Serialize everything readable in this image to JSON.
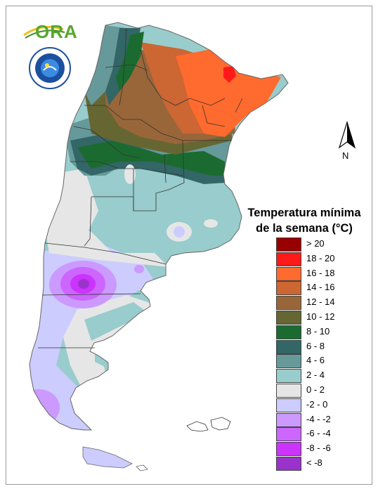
{
  "header": {
    "logo_text": "ORA",
    "seal_text": "SERVICIO METEOROLOGICO NACIONAL ARGENTINA"
  },
  "north_arrow": {
    "label": "N"
  },
  "legend": {
    "title_line1": "Temperatura mínima",
    "title_line2": "de la semana (°C)",
    "items": [
      {
        "label": "> 20",
        "color": "#990000"
      },
      {
        "label": "18 - 20",
        "color": "#ff1a1a"
      },
      {
        "label": "16 - 18",
        "color": "#ff6b2e"
      },
      {
        "label": "14 - 16",
        "color": "#cc6633"
      },
      {
        "label": "12 - 14",
        "color": "#99663a"
      },
      {
        "label": "10 - 12",
        "color": "#666633"
      },
      {
        "label": "8 - 10",
        "color": "#1b6b30"
      },
      {
        "label": "6 - 8",
        "color": "#336666"
      },
      {
        "label": "4 - 6",
        "color": "#669999"
      },
      {
        "label": "2 - 4",
        "color": "#99cccc"
      },
      {
        "label": "0 - 2",
        "color": "#e6e6e6"
      },
      {
        "label": "-2 - 0",
        "color": "#ccccff"
      },
      {
        "label": "-4 - -2",
        "color": "#cc99ff"
      },
      {
        "label": "-6 - -4",
        "color": "#cc66ff"
      },
      {
        "label": "-8 - -6",
        "color": "#cc33ff"
      },
      {
        "label": "< -8",
        "color": "#9933cc"
      }
    ]
  }
}
